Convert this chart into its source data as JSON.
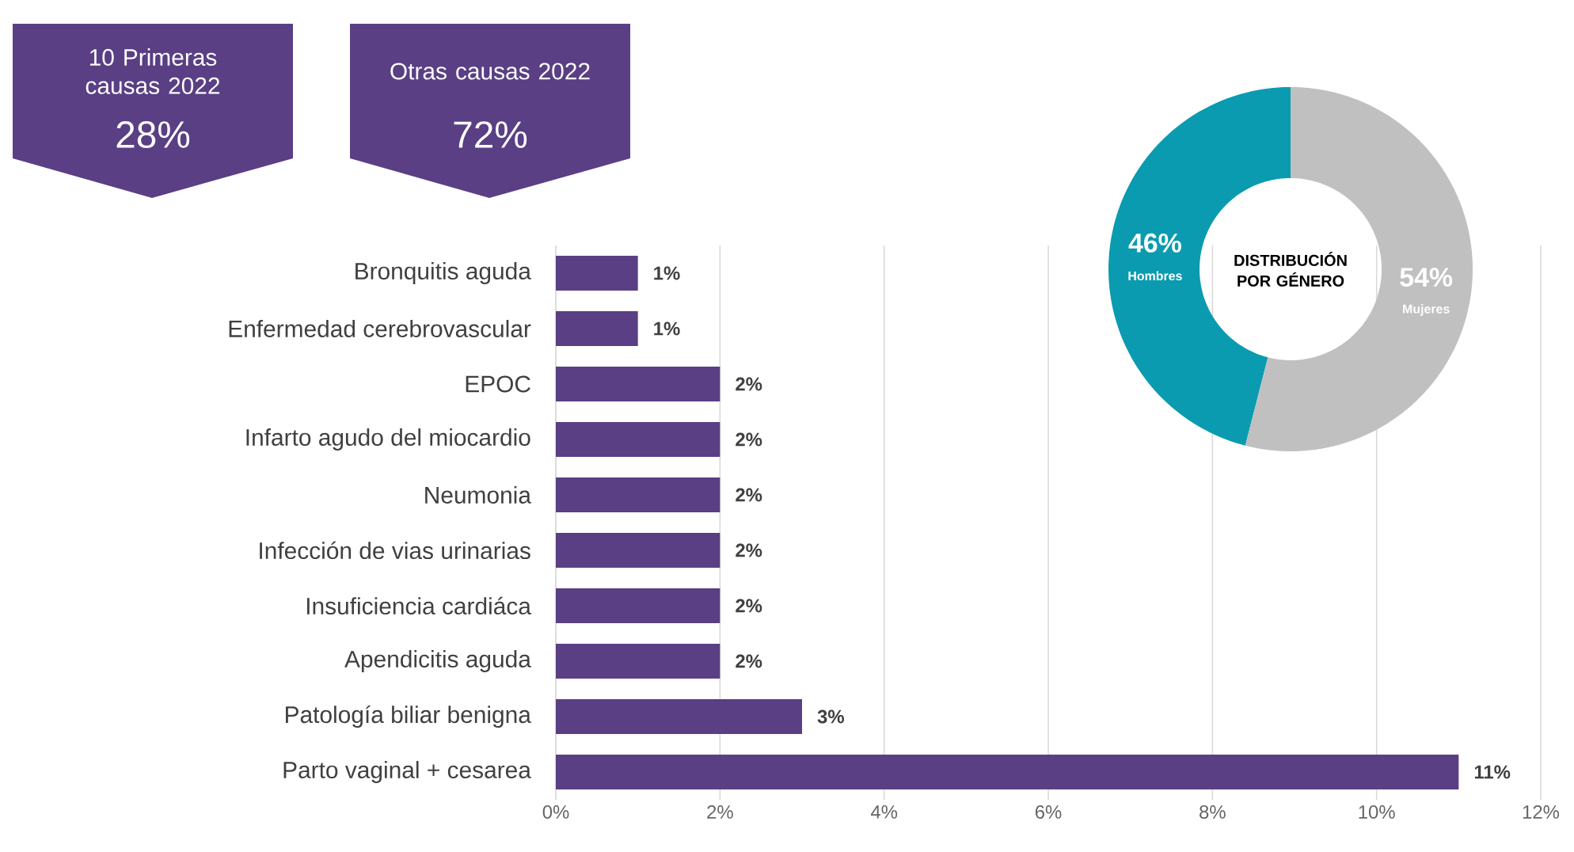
{
  "chart_data": [
    {
      "type": "other",
      "title": "10 Primeras causas  2022",
      "annotations": [
        "28%"
      ],
      "color": "#5a3f84"
    },
    {
      "type": "other",
      "title": "Otras causas 2022",
      "annotations": [
        "72%"
      ],
      "color": "#5a3f84"
    },
    {
      "type": "bar",
      "orientation": "horizontal",
      "categories": [
        "Bronquitis aguda",
        "Enfermedad cerebrovascular",
        "EPOC",
        "Infarto agudo del miocardio",
        "Neumonia",
        "Infección de vias urinarias",
        "Insuficiencia cardiáca",
        "Apendicitis aguda",
        "Patología biliar benigna",
        "Parto vaginal + cesarea"
      ],
      "values": [
        1,
        1,
        2,
        2,
        2,
        2,
        2,
        2,
        3,
        11
      ],
      "value_labels": [
        "1%",
        "1%",
        "2%",
        "2%",
        "2%",
        "2%",
        "2%",
        "2%",
        "3%",
        "11%"
      ],
      "color": "#5a3f84",
      "xlim": [
        0,
        12
      ],
      "xticks": [
        {
          "value": 0,
          "label": "0%"
        },
        {
          "value": 2,
          "label": "2%"
        },
        {
          "value": 4,
          "label": "4%"
        },
        {
          "value": 6,
          "label": "6%"
        },
        {
          "value": 8,
          "label": "8%"
        },
        {
          "value": 10,
          "label": "10%"
        },
        {
          "value": 12,
          "label": "12%"
        }
      ],
      "grid": "x"
    },
    {
      "type": "donut",
      "title": "DISTRIBUCIÓN POR GÉNERO",
      "categories": [
        "Hombres",
        "Mujeres"
      ],
      "values": [
        46,
        54
      ],
      "value_labels": [
        "46%",
        "54%"
      ],
      "colors": [
        "#0a9bb0",
        "#c0c0c0"
      ]
    }
  ]
}
